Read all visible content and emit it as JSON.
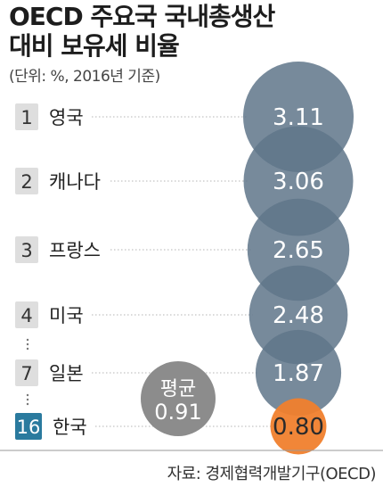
{
  "title_line1": "OECD 주요국 국내총생산",
  "title_line2": "대비 보유세 비율",
  "subtitle": "(단위: %, 2016년 기준)",
  "source": "자료: 경제협력개발기구(OECD)",
  "colors": {
    "bubble": "#5f7689",
    "highlight": "#f07f2d",
    "rank_box": "#dedede",
    "highlight_rank_box": "#2a7a9e",
    "average": "#8c8c8c"
  },
  "chart_data": {
    "type": "bubble",
    "unit": "%",
    "rows": [
      {
        "rank": "1",
        "country": "영국",
        "value": 3.11,
        "label": "3.11",
        "highlight": false
      },
      {
        "rank": "2",
        "country": "캐나다",
        "value": 3.06,
        "label": "3.06",
        "highlight": false
      },
      {
        "rank": "3",
        "country": "프랑스",
        "value": 2.65,
        "label": "2.65",
        "highlight": false
      },
      {
        "rank": "4",
        "country": "미국",
        "value": 2.48,
        "label": "2.48",
        "highlight": false
      },
      {
        "rank": "7",
        "country": "일본",
        "value": 1.87,
        "label": "1.87",
        "highlight": false
      },
      {
        "rank": "16",
        "country": "한국",
        "value": 0.8,
        "label": "0.80",
        "highlight": true
      }
    ],
    "average": {
      "label": "평균",
      "value": 0.91,
      "value_label": "0.91"
    },
    "gaps": [
      3,
      4
    ]
  }
}
